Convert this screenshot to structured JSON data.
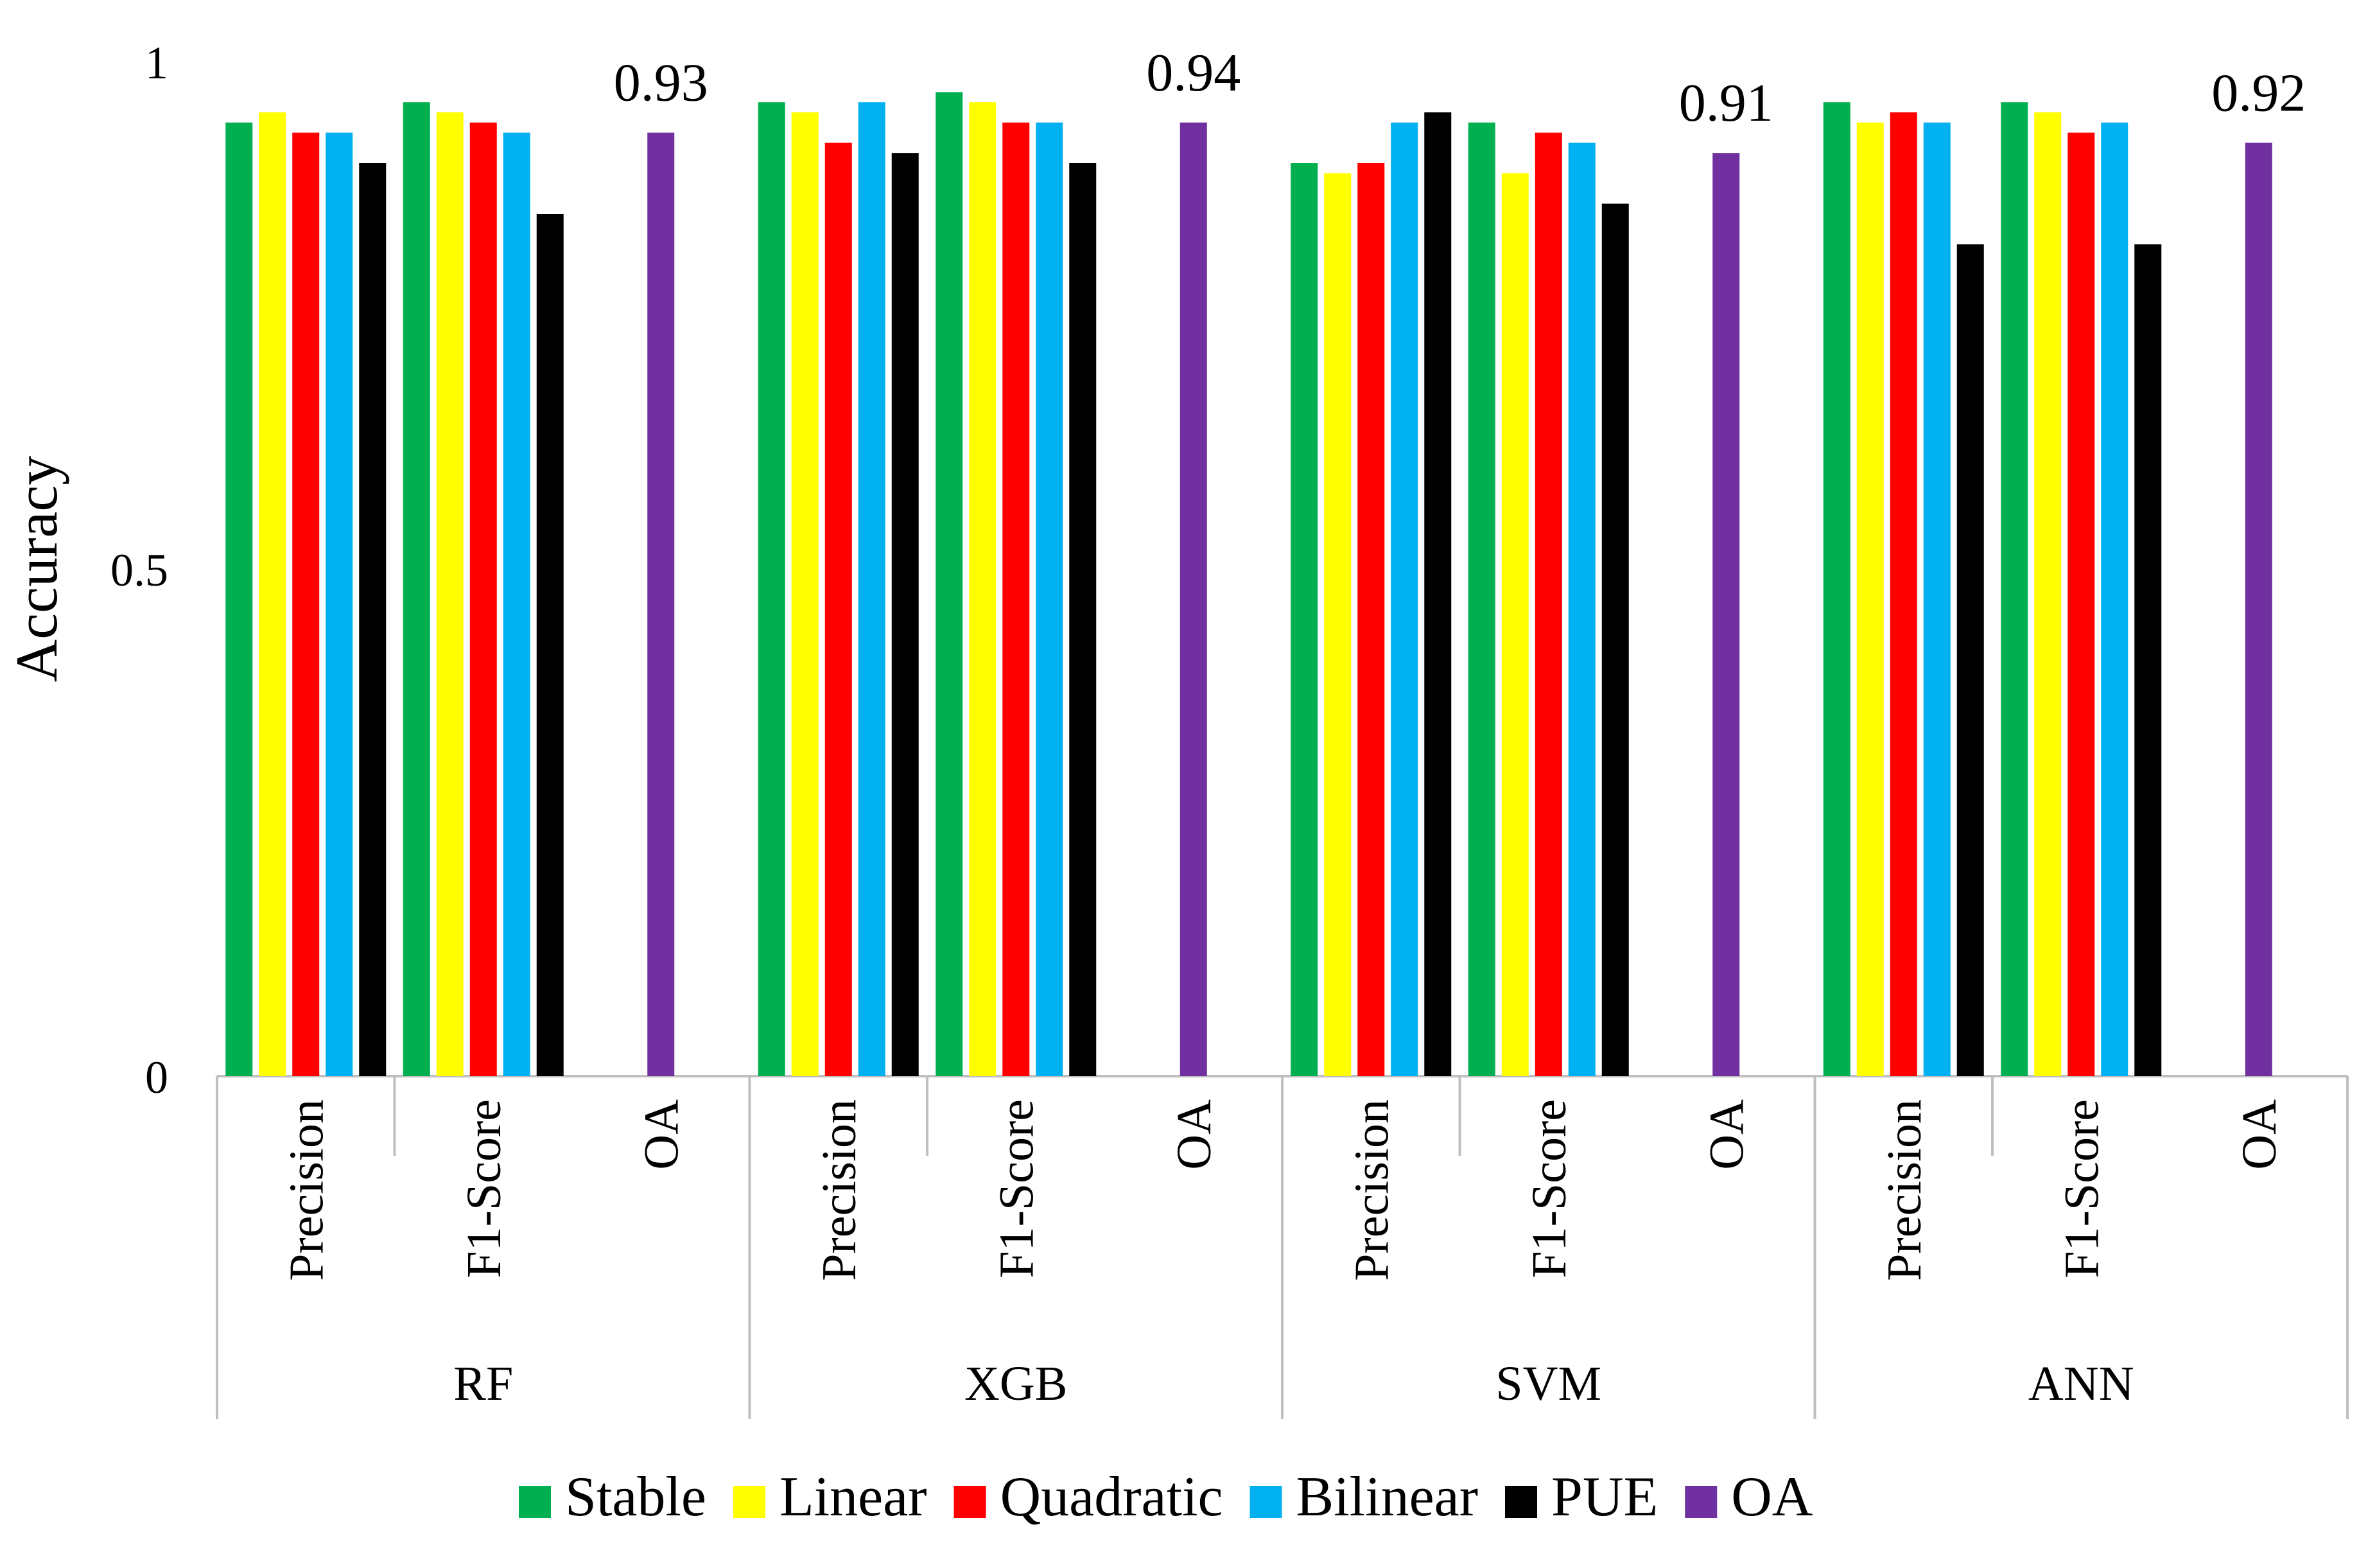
{
  "chart_data": {
    "type": "bar",
    "ylabel": "Accuracy",
    "ylim": [
      0,
      1
    ],
    "yticks": [
      {
        "value": 0,
        "label": "0"
      },
      {
        "value": 0.5,
        "label": "0.5"
      },
      {
        "value": 1,
        "label": "1"
      }
    ],
    "legend_position": "bottom",
    "legend": [
      {
        "key": "stable",
        "label": "Stable",
        "color": "#00b050"
      },
      {
        "key": "linear",
        "label": "Linear",
        "color": "#ffff00"
      },
      {
        "key": "quadratic",
        "label": "Quadratic",
        "color": "#ff0000"
      },
      {
        "key": "bilinear",
        "label": "Bilinear",
        "color": "#00b0f0"
      },
      {
        "key": "pue",
        "label": "PUE",
        "color": "#000000"
      },
      {
        "key": "oa",
        "label": "OA",
        "color": "#7030a0"
      }
    ],
    "groups": [
      {
        "model": "RF",
        "metrics": [
          {
            "label": "Precision",
            "values": {
              "stable": 0.94,
              "linear": 0.95,
              "quadratic": 0.93,
              "bilinear": 0.93,
              "pue": 0.9
            }
          },
          {
            "label": "F1-Score",
            "values": {
              "stable": 0.96,
              "linear": 0.95,
              "quadratic": 0.94,
              "bilinear": 0.93,
              "pue": 0.85
            }
          },
          {
            "label": "OA",
            "values": {
              "oa": 0.93
            },
            "value_label": "0.93"
          }
        ]
      },
      {
        "model": "XGB",
        "metrics": [
          {
            "label": "Precision",
            "values": {
              "stable": 0.96,
              "linear": 0.95,
              "quadratic": 0.92,
              "bilinear": 0.96,
              "pue": 0.91
            }
          },
          {
            "label": "F1-Score",
            "values": {
              "stable": 0.97,
              "linear": 0.96,
              "quadratic": 0.94,
              "bilinear": 0.94,
              "pue": 0.9
            }
          },
          {
            "label": "OA",
            "values": {
              "oa": 0.94
            },
            "value_label": "0.94"
          }
        ]
      },
      {
        "model": "SVM",
        "metrics": [
          {
            "label": "Precision",
            "values": {
              "stable": 0.9,
              "linear": 0.89,
              "quadratic": 0.9,
              "bilinear": 0.94,
              "pue": 0.95
            }
          },
          {
            "label": "F1-Score",
            "values": {
              "stable": 0.94,
              "linear": 0.89,
              "quadratic": 0.93,
              "bilinear": 0.92,
              "pue": 0.86
            }
          },
          {
            "label": "OA",
            "values": {
              "oa": 0.91
            },
            "value_label": "0.91"
          }
        ]
      },
      {
        "model": "ANN",
        "metrics": [
          {
            "label": "Precision",
            "values": {
              "stable": 0.96,
              "linear": 0.94,
              "quadratic": 0.95,
              "bilinear": 0.94,
              "pue": 0.82
            }
          },
          {
            "label": "F1-Score",
            "values": {
              "stable": 0.96,
              "linear": 0.95,
              "quadratic": 0.93,
              "bilinear": 0.94,
              "pue": 0.82
            }
          },
          {
            "label": "OA",
            "values": {
              "oa": 0.92
            },
            "value_label": "0.92"
          }
        ]
      }
    ]
  }
}
